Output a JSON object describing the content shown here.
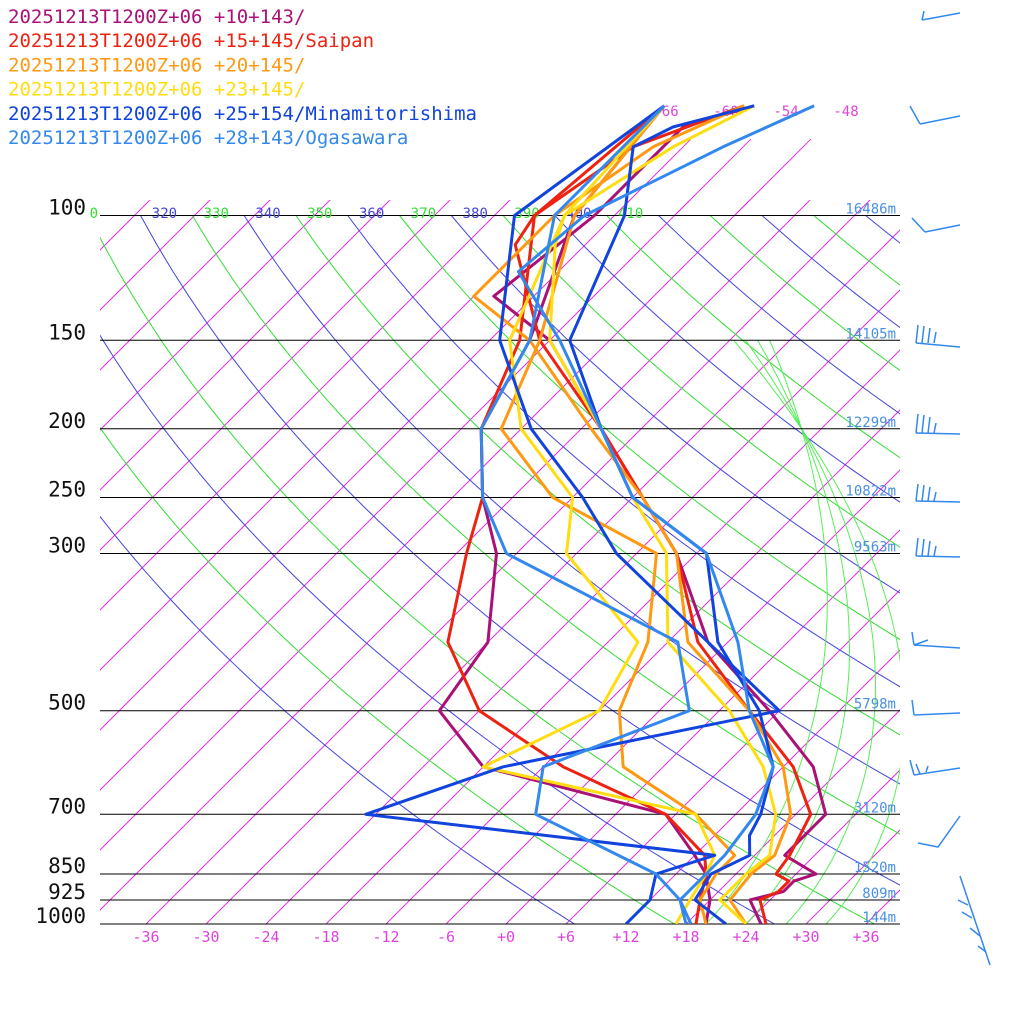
{
  "chart_data": {
    "type": "line",
    "title": "",
    "xlabel": "",
    "ylabel": "",
    "pressure_levels": [
      100,
      150,
      200,
      250,
      300,
      500,
      700,
      850,
      925,
      1000
    ],
    "pressure_labels": [
      "100",
      "150",
      "200",
      "250",
      "300",
      "500",
      "700",
      "850",
      "925",
      "1000"
    ],
    "height_labels": [
      {
        "p": 100,
        "label": "16486m"
      },
      {
        "p": 150,
        "label": "14105m"
      },
      {
        "p": 200,
        "label": "12299m"
      },
      {
        "p": 250,
        "label": "10822m"
      },
      {
        "p": 300,
        "label": "9563m"
      },
      {
        "p": 500,
        "label": "5798m"
      },
      {
        "p": 700,
        "label": "3120m"
      },
      {
        "p": 850,
        "label": "1520m"
      },
      {
        "p": 925,
        "label": "809m"
      },
      {
        "p": 1000,
        "label": "144m"
      }
    ],
    "temperature_ticks": [
      -36,
      -30,
      -24,
      -18,
      -12,
      -6,
      0,
      6,
      12,
      18,
      24,
      30,
      36
    ],
    "temperature_tick_labels": [
      "-36",
      "-30",
      "-24",
      "-18",
      "-12",
      "-6",
      "+0",
      "+6",
      "+12",
      "+18",
      "+24",
      "+30",
      "+36"
    ],
    "isotherm_labels": [
      "-66",
      "-60",
      "-54",
      "-48"
    ],
    "theta_labels": [
      {
        "label": "0",
        "color": "#33dd33"
      },
      {
        "label": "320",
        "color": "#4444dd"
      },
      {
        "label": "330",
        "color": "#33dd33"
      },
      {
        "label": "340",
        "color": "#4444dd"
      },
      {
        "label": "350",
        "color": "#33dd33"
      },
      {
        "label": "360",
        "color": "#4444dd"
      },
      {
        "label": "370",
        "color": "#33dd33"
      },
      {
        "label": "380",
        "color": "#4444dd"
      },
      {
        "label": "390",
        "color": "#33dd33"
      },
      {
        "label": "400",
        "color": "#4444dd"
      },
      {
        "label": "410",
        "color": "#33dd33"
      }
    ],
    "series": [
      {
        "name": "20251213T1200Z+06 +10+143/",
        "color": "#aa1177",
        "temperature": [
          [
            1000,
            25.5
          ],
          [
            925,
            22
          ],
          [
            900,
            24.5
          ],
          [
            870,
            24.5
          ],
          [
            850,
            26
          ],
          [
            800,
            21
          ],
          [
            700,
            21
          ],
          [
            600,
            15
          ],
          [
            500,
            5
          ],
          [
            400,
            -8
          ],
          [
            300,
            -20
          ],
          [
            250,
            -29
          ],
          [
            200,
            -40
          ],
          [
            150,
            -54
          ],
          [
            130,
            -64
          ],
          [
            100,
            -62
          ],
          [
            75,
            -62
          ],
          [
            70,
            -57
          ]
        ],
        "dewpoint": [
          [
            1000,
            20
          ],
          [
            925,
            18
          ],
          [
            850,
            15
          ],
          [
            800,
            12
          ],
          [
            700,
            5
          ],
          [
            600,
            -18
          ],
          [
            500,
            -28
          ],
          [
            400,
            -30
          ],
          [
            300,
            -38
          ],
          [
            250,
            -45
          ],
          [
            200,
            -52
          ],
          [
            150,
            -56
          ],
          [
            100,
            -64
          ],
          [
            70,
            -66
          ]
        ]
      },
      {
        "name": "20251213T1200Z+06 +15+145/Saipan",
        "color": "#ee2211",
        "temperature": [
          [
            1000,
            26
          ],
          [
            925,
            23
          ],
          [
            900,
            24
          ],
          [
            870,
            24
          ],
          [
            850,
            22
          ],
          [
            800,
            21.5
          ],
          [
            700,
            19.5
          ],
          [
            600,
            13
          ],
          [
            500,
            3
          ],
          [
            400,
            -9
          ],
          [
            300,
            -20
          ],
          [
            250,
            -29
          ],
          [
            200,
            -40
          ],
          [
            150,
            -55
          ],
          [
            110,
            -67
          ],
          [
            100,
            -68
          ],
          [
            80,
            -65
          ],
          [
            70,
            -58
          ]
        ],
        "dewpoint": [
          [
            1000,
            19
          ],
          [
            925,
            17
          ],
          [
            850,
            15
          ],
          [
            800,
            13
          ],
          [
            700,
            5
          ],
          [
            600,
            -10
          ],
          [
            500,
            -24
          ],
          [
            400,
            -34
          ],
          [
            300,
            -41
          ],
          [
            250,
            -45
          ],
          [
            200,
            -52
          ],
          [
            150,
            -57
          ],
          [
            100,
            -68
          ],
          [
            70,
            -66
          ]
        ]
      },
      {
        "name": "20251213T1200Z+06 +20+145/",
        "color": "#ff9911",
        "temperature": [
          [
            1000,
            24
          ],
          [
            925,
            20
          ],
          [
            850,
            19.5
          ],
          [
            800,
            20
          ],
          [
            700,
            17.5
          ],
          [
            600,
            12
          ],
          [
            500,
            3
          ],
          [
            400,
            -10
          ],
          [
            300,
            -20
          ],
          [
            250,
            -29
          ],
          [
            200,
            -41
          ],
          [
            150,
            -56
          ],
          [
            130,
            -66
          ],
          [
            100,
            -66
          ],
          [
            80,
            -63
          ],
          [
            70,
            -58
          ]
        ],
        "dewpoint": [
          [
            1000,
            20
          ],
          [
            925,
            17
          ],
          [
            850,
            16
          ],
          [
            800,
            16
          ],
          [
            700,
            8
          ],
          [
            600,
            -4
          ],
          [
            500,
            -10
          ],
          [
            400,
            -14
          ],
          [
            300,
            -22
          ],
          [
            250,
            -38
          ],
          [
            200,
            -50
          ],
          [
            150,
            -55
          ],
          [
            100,
            -64
          ],
          [
            70,
            -66
          ]
        ]
      },
      {
        "name": "20251213T1200Z+06 +23+145/",
        "color": "#ffdd11",
        "temperature": [
          [
            1000,
            24
          ],
          [
            925,
            19
          ],
          [
            850,
            19
          ],
          [
            800,
            19.5
          ],
          [
            700,
            16
          ],
          [
            600,
            10
          ],
          [
            500,
            1
          ],
          [
            400,
            -12
          ],
          [
            300,
            -21
          ],
          [
            250,
            -30
          ],
          [
            200,
            -40
          ],
          [
            150,
            -54
          ],
          [
            110,
            -63
          ],
          [
            100,
            -65
          ],
          [
            80,
            -61
          ],
          [
            70,
            -57
          ]
        ],
        "dewpoint": [
          [
            1000,
            17
          ],
          [
            925,
            16
          ],
          [
            850,
            15
          ],
          [
            800,
            14
          ],
          [
            700,
            8
          ],
          [
            600,
            -18
          ],
          [
            500,
            -12
          ],
          [
            400,
            -15
          ],
          [
            300,
            -31
          ],
          [
            250,
            -36
          ],
          [
            200,
            -48
          ],
          [
            150,
            -58
          ],
          [
            100,
            -65
          ],
          [
            70,
            -66
          ]
        ]
      },
      {
        "name": "20251213T1200Z+06 +25+154/Minamitorishima",
        "color": "#1144dd",
        "temperature": [
          [
            1000,
            22
          ],
          [
            925,
            16.5
          ],
          [
            850,
            15.5
          ],
          [
            800,
            17.5
          ],
          [
            750,
            15.5
          ],
          [
            700,
            14.5
          ],
          [
            600,
            11
          ],
          [
            500,
            4
          ],
          [
            400,
            -7
          ],
          [
            300,
            -17
          ],
          [
            250,
            -30
          ],
          [
            200,
            -40
          ],
          [
            150,
            -52
          ],
          [
            100,
            -59
          ],
          [
            80,
            -65
          ],
          [
            75,
            -63
          ],
          [
            70,
            -57
          ]
        ],
        "dewpoint": [
          [
            1000,
            12
          ],
          [
            925,
            12
          ],
          [
            850,
            10
          ],
          [
            800,
            14
          ],
          [
            700,
            -25
          ],
          [
            600,
            -16
          ],
          [
            500,
            6
          ],
          [
            400,
            -8
          ],
          [
            300,
            -26
          ],
          [
            250,
            -35
          ],
          [
            200,
            -47
          ],
          [
            150,
            -59
          ],
          [
            100,
            -70
          ],
          [
            70,
            -66
          ]
        ]
      },
      {
        "name": "20251213T1200Z+06 +28+143/Ogasawara",
        "color": "#3388ee",
        "temperature": [
          [
            1000,
            18.5
          ],
          [
            925,
            15
          ],
          [
            850,
            15
          ],
          [
            800,
            15
          ],
          [
            700,
            14
          ],
          [
            600,
            11
          ],
          [
            500,
            3
          ],
          [
            400,
            -5
          ],
          [
            300,
            -17
          ],
          [
            250,
            -30
          ],
          [
            200,
            -40
          ],
          [
            150,
            -53
          ],
          [
            120,
            -64
          ],
          [
            100,
            -63
          ],
          [
            80,
            -56
          ],
          [
            70,
            -51
          ]
        ],
        "dewpoint": [
          [
            1000,
            18
          ],
          [
            925,
            15
          ],
          [
            850,
            10
          ],
          [
            700,
            -8
          ],
          [
            600,
            -12
          ],
          [
            500,
            -3
          ],
          [
            400,
            -11
          ],
          [
            300,
            -37
          ],
          [
            250,
            -45
          ],
          [
            200,
            -52
          ],
          [
            150,
            -56
          ],
          [
            100,
            -66
          ],
          [
            70,
            -66
          ]
        ]
      }
    ],
    "x_range": [
      -40,
      40
    ],
    "y_range": [
      1000,
      100
    ],
    "y_scale": "log",
    "skew": true,
    "grid": true,
    "legend_position": "top-left"
  }
}
